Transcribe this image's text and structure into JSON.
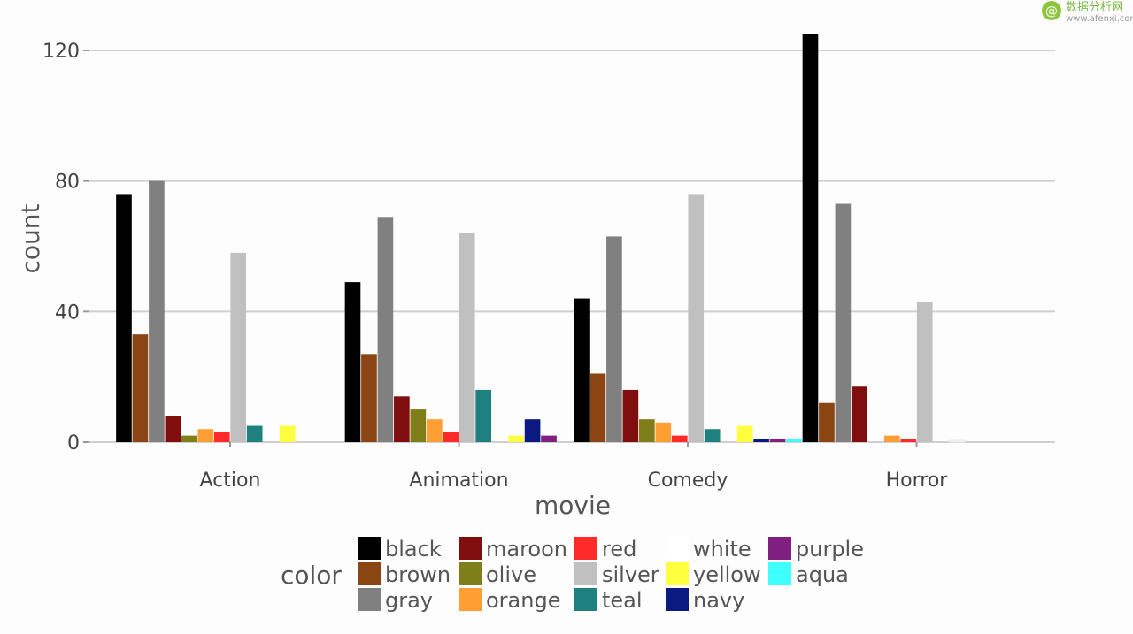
{
  "watermark": {
    "text": "数据分析网",
    "url": "www.afenxi.com"
  },
  "chart_data": {
    "type": "bar",
    "xlabel": "movie",
    "ylabel": "count",
    "ylim": [
      0,
      130
    ],
    "yticks": [
      0,
      40,
      80,
      120
    ],
    "grid": true,
    "categories": [
      "Action",
      "Animation",
      "Comedy",
      "Horror"
    ],
    "legend": {
      "title": "color",
      "placement": "bottom"
    },
    "series": [
      {
        "name": "black",
        "color": "#000000",
        "values": [
          76,
          49,
          44,
          125
        ]
      },
      {
        "name": "brown",
        "color": "#8b4513",
        "values": [
          33,
          27,
          21,
          12
        ]
      },
      {
        "name": "gray",
        "color": "#808080",
        "values": [
          80,
          69,
          63,
          73
        ]
      },
      {
        "name": "maroon",
        "color": "#800e0e",
        "values": [
          8,
          14,
          16,
          17
        ]
      },
      {
        "name": "olive",
        "color": "#7f7f1a",
        "values": [
          2,
          10,
          7,
          0
        ]
      },
      {
        "name": "orange",
        "color": "#ff9f33",
        "values": [
          4,
          7,
          6,
          2
        ]
      },
      {
        "name": "red",
        "color": "#ff2a2a",
        "values": [
          3,
          3,
          2,
          1
        ]
      },
      {
        "name": "silver",
        "color": "#c0c0c0",
        "values": [
          58,
          64,
          76,
          43
        ]
      },
      {
        "name": "teal",
        "color": "#1f8080",
        "values": [
          5,
          16,
          4,
          0
        ]
      },
      {
        "name": "white",
        "color": "#ffffff",
        "values": [
          0,
          0,
          0,
          0.5
        ]
      },
      {
        "name": "yellow",
        "color": "#ffff40",
        "values": [
          5,
          2,
          5,
          0
        ]
      },
      {
        "name": "navy",
        "color": "#0a1a80",
        "values": [
          0,
          7,
          1,
          0
        ]
      },
      {
        "name": "purple",
        "color": "#7f2080",
        "values": [
          0,
          2,
          1,
          0
        ]
      },
      {
        "name": "aqua",
        "color": "#40ffff",
        "values": [
          0,
          0,
          1,
          0
        ]
      }
    ]
  }
}
